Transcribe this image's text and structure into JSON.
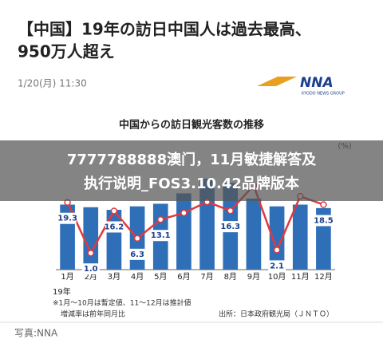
{
  "headline": [
    "【中国】19年の訪日中国人は過去最高、",
    "950万人超え"
  ],
  "date": "1/20(月) 11:30",
  "logo": "NNA",
  "logo_sub": "KYODO NEWS GROUP",
  "chart": {
    "type": "bar-line",
    "title": "中国からの訪日観光客数の推移",
    "categories": [
      "1月",
      "2月",
      "3月",
      "4月",
      "5月",
      "6月",
      "7月",
      "8月",
      "9月",
      "10月",
      "11月",
      "12月"
    ],
    "year_label": "19年",
    "y2_unit": "(%)",
    "ylim": [
      0,
      150
    ],
    "y2lim": [
      -5,
      42
    ],
    "bars": {
      "color": "#2f6fb8",
      "values": [
        75,
        72,
        69,
        73,
        76,
        88,
        105,
        100,
        82,
        73,
        75,
        71
      ]
    },
    "line": {
      "color": "#e0393e",
      "values": [
        19.3,
        1.0,
        16.2,
        6.3,
        13.1,
        15.5,
        19.5,
        16.3,
        25.4,
        2.1,
        21.5,
        18.5
      ],
      "value_labels": [
        "19.3",
        "1.0",
        "16.2",
        "6.3",
        "13.1",
        null,
        null,
        "16.3",
        null,
        "2.1",
        null,
        "18.5"
      ]
    }
  },
  "notes": [
    "※1月～10月は暫定値、11～12月は推計値",
    "増減率は前年同月比"
  ],
  "source": "出所：日本政府観光局（ＪＮＴＯ）",
  "photo_credit": "写真:NNA",
  "overlay": [
    "7777788888澳门，11月敏捷解答及",
    "执行说明_FOS3.10.42品牌版本"
  ]
}
